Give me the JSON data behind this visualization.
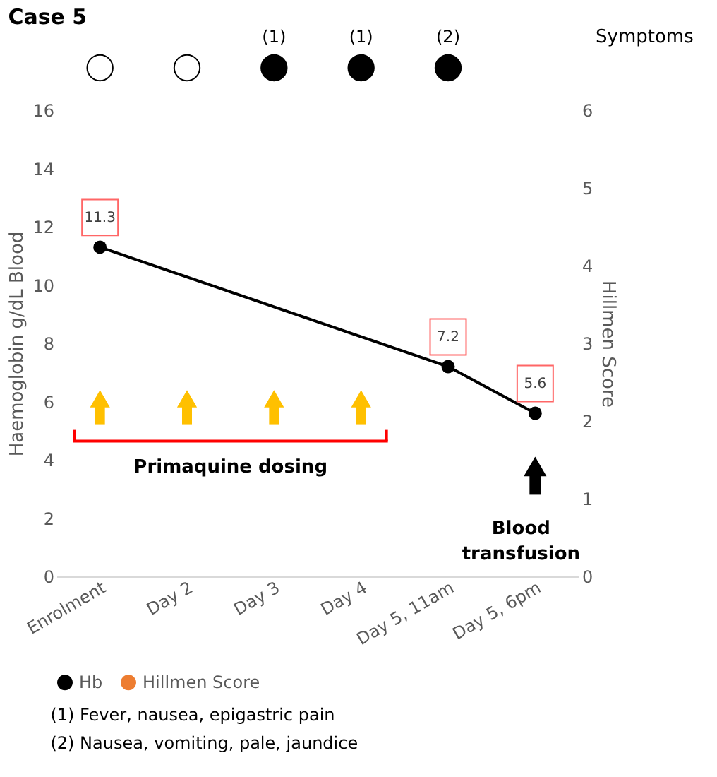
{
  "chart_data": [
    {
      "type": "other",
      "title": "Case 5",
      "ylabel": "Symptoms",
      "colors": [
        "#ffffff",
        "#ffffff",
        "#000000",
        "#000000",
        "#000000"
      ],
      "value_labels": [
        null,
        null,
        "(1)",
        "(1)",
        "(2)"
      ]
    },
    {
      "type": "line",
      "categories": [
        "Enrolment",
        "Day 2",
        "Day 3",
        "Day 4",
        "Day 5, 11am",
        "Day 5, 6pm"
      ],
      "series": [
        {
          "name": "Hb",
          "color": "#000000",
          "values": [
            11.3,
            null,
            null,
            null,
            7.2,
            5.6
          ]
        },
        {
          "name": "Hillmen Score",
          "color": "#ed7d31",
          "axis": "y2",
          "values": [
            null,
            null,
            null,
            null,
            null,
            null
          ]
        }
      ],
      "ylabel": "Haemoglobin g/dL Blood",
      "y2label": "Hillmen Score",
      "ylim": [
        0,
        16
      ],
      "yticks": [
        0,
        2,
        4,
        6,
        8,
        10,
        12,
        14,
        16
      ],
      "y2lim": [
        0,
        6
      ],
      "y2ticks": [
        0,
        1,
        2,
        3,
        4,
        5,
        6
      ],
      "data_labels": true,
      "marker": "circle",
      "legend": "bottom",
      "grid": false,
      "annotations": [
        "Primaquine dosing",
        "Blood transfusion",
        "(1) Fever, nausea, epigastric pain",
        "(2) Nausea, vomiting, pale, jaundice"
      ]
    }
  ]
}
